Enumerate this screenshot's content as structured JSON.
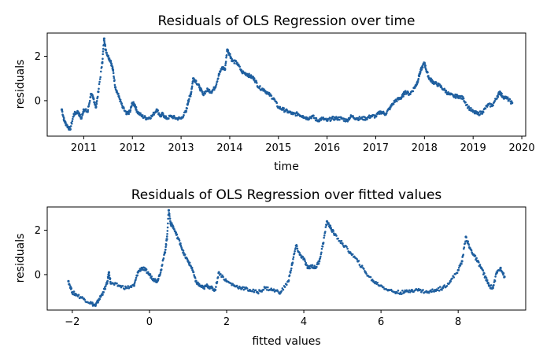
{
  "colors": {
    "points": "#1f5f9f",
    "axes": "#000000",
    "background": "#ffffff"
  },
  "chart_data": [
    {
      "type": "scatter",
      "title": "Residuals of OLS Regression over time",
      "xlabel": "time",
      "ylabel": "residuals",
      "xlim": [
        2010.25,
        2020.08
      ],
      "ylim": [
        -1.6,
        3.05
      ],
      "x_ticks": [
        2011,
        2012,
        2013,
        2014,
        2015,
        2016,
        2017,
        2018,
        2019,
        2020
      ],
      "y_ticks": [
        0,
        2
      ],
      "x_tick_labels": [
        "2011",
        "2012",
        "2013",
        "2014",
        "2015",
        "2016",
        "2017",
        "2018",
        "2019",
        "2020"
      ],
      "y_tick_labels": [
        "0",
        "2"
      ],
      "grid": false,
      "legend": "none",
      "series": [
        {
          "x": [
            2010.55,
            2010.6,
            2010.65,
            2010.72,
            2010.8,
            2010.88,
            2010.95,
            2011.0,
            2011.08,
            2011.15,
            2011.2,
            2011.25,
            2011.3,
            2011.38,
            2011.42,
            2011.45,
            2011.5,
            2011.55,
            2011.6,
            2011.65,
            2011.72,
            2011.8,
            2011.88,
            2011.95,
            2012.0,
            2012.05,
            2012.1,
            2012.2,
            2012.3,
            2012.4,
            2012.5,
            2012.58,
            2012.62,
            2012.7,
            2012.8,
            2012.9,
            2013.0,
            2013.1,
            2013.15,
            2013.2,
            2013.25,
            2013.3,
            2013.38,
            2013.45,
            2013.55,
            2013.62,
            2013.7,
            2013.78,
            2013.85,
            2013.9,
            2013.95,
            2014.0,
            2014.05,
            2014.15,
            2014.25,
            2014.35,
            2014.42,
            2014.5,
            2014.6,
            2014.7,
            2014.8,
            2014.9,
            2015.0,
            2015.1,
            2015.2,
            2015.3,
            2015.4,
            2015.5,
            2015.6,
            2015.7,
            2015.8,
            2015.9,
            2016.0,
            2016.1,
            2016.2,
            2016.3,
            2016.4,
            2016.5,
            2016.6,
            2016.7,
            2016.8,
            2016.9,
            2017.0,
            2017.1,
            2017.2,
            2017.3,
            2017.4,
            2017.5,
            2017.55,
            2017.6,
            2017.7,
            2017.8,
            2017.85,
            2017.9,
            2017.95,
            2018.0,
            2018.05,
            2018.1,
            2018.15,
            2018.2,
            2018.3,
            2018.4,
            2018.5,
            2018.6,
            2018.7,
            2018.8,
            2018.9,
            2019.0,
            2019.1,
            2019.2,
            2019.3,
            2019.4,
            2019.5,
            2019.55,
            2019.6,
            2019.7,
            2019.8
          ],
          "y": [
            -0.4,
            -0.9,
            -1.1,
            -1.3,
            -0.6,
            -0.5,
            -0.8,
            -0.4,
            -0.5,
            0.3,
            0.1,
            -0.3,
            0.4,
            1.7,
            2.8,
            2.3,
            2.0,
            1.8,
            1.4,
            0.6,
            0.2,
            -0.3,
            -0.6,
            -0.5,
            -0.1,
            -0.2,
            -0.5,
            -0.7,
            -0.8,
            -0.7,
            -0.4,
            -0.7,
            -0.6,
            -0.8,
            -0.7,
            -0.8,
            -0.8,
            -0.5,
            0.0,
            0.3,
            1.0,
            0.9,
            0.6,
            0.3,
            0.5,
            0.4,
            0.6,
            1.2,
            1.5,
            1.4,
            2.3,
            2.1,
            1.8,
            1.7,
            1.3,
            1.2,
            1.1,
            1.0,
            0.6,
            0.5,
            0.3,
            0.1,
            -0.3,
            -0.4,
            -0.5,
            -0.6,
            -0.6,
            -0.7,
            -0.8,
            -0.7,
            -0.9,
            -0.8,
            -0.9,
            -0.8,
            -0.8,
            -0.8,
            -0.9,
            -0.7,
            -0.8,
            -0.8,
            -0.8,
            -0.7,
            -0.7,
            -0.5,
            -0.6,
            -0.3,
            0.0,
            0.1,
            0.2,
            0.4,
            0.3,
            0.6,
            0.8,
            1.2,
            1.5,
            1.7,
            1.3,
            1.0,
            0.9,
            0.8,
            0.7,
            0.5,
            0.3,
            0.2,
            0.2,
            0.1,
            -0.3,
            -0.5,
            -0.6,
            -0.5,
            -0.2,
            -0.2,
            0.2,
            0.4,
            0.2,
            0.1,
            -0.1
          ]
        }
      ]
    },
    {
      "type": "scatter",
      "title": "Residuals of OLS Regression over fitted values",
      "xlabel": "fitted values",
      "ylabel": "residuals",
      "xlim": [
        -2.65,
        9.75
      ],
      "ylim": [
        -1.6,
        3.05
      ],
      "x_ticks": [
        -2,
        0,
        2,
        4,
        6,
        8
      ],
      "y_ticks": [
        0,
        2
      ],
      "x_tick_labels": [
        "−2",
        "0",
        "2",
        "4",
        "6",
        "8"
      ],
      "y_tick_labels": [
        "0",
        "2"
      ],
      "grid": false,
      "legend": "none",
      "series": [
        {
          "x": [
            -2.1,
            -2.0,
            -1.9,
            -1.7,
            -1.5,
            -1.4,
            -1.3,
            -1.2,
            -1.1,
            -1.05,
            -1.0,
            -0.8,
            -0.6,
            -0.4,
            -0.3,
            -0.2,
            -0.1,
            0.0,
            0.1,
            0.2,
            0.3,
            0.4,
            0.45,
            0.5,
            0.55,
            0.6,
            0.7,
            0.8,
            0.9,
            1.0,
            1.1,
            1.2,
            1.3,
            1.4,
            1.5,
            1.6,
            1.7,
            1.8,
            2.0,
            2.2,
            2.4,
            2.6,
            2.8,
            3.0,
            3.2,
            3.4,
            3.6,
            3.7,
            3.8,
            3.9,
            4.0,
            4.1,
            4.2,
            4.3,
            4.4,
            4.5,
            4.6,
            4.7,
            4.8,
            5.0,
            5.2,
            5.4,
            5.6,
            5.8,
            6.0,
            6.2,
            6.4,
            6.6,
            6.8,
            7.0,
            7.2,
            7.4,
            7.6,
            7.8,
            8.0,
            8.1,
            8.2,
            8.3,
            8.4,
            8.5,
            8.6,
            8.7,
            8.8,
            8.9,
            9.0,
            9.1,
            9.2
          ],
          "y": [
            -0.3,
            -0.8,
            -0.9,
            -1.1,
            -1.3,
            -1.4,
            -1.1,
            -0.8,
            -0.4,
            0.1,
            -0.4,
            -0.5,
            -0.6,
            -0.5,
            0.1,
            0.3,
            0.2,
            0.0,
            -0.2,
            -0.3,
            0.2,
            1.0,
            1.6,
            2.9,
            2.3,
            2.2,
            1.8,
            1.4,
            0.9,
            0.6,
            0.3,
            -0.3,
            -0.5,
            -0.6,
            -0.5,
            -0.6,
            -0.7,
            0.1,
            -0.3,
            -0.5,
            -0.6,
            -0.7,
            -0.8,
            -0.6,
            -0.7,
            -0.8,
            -0.3,
            0.5,
            1.3,
            0.9,
            0.7,
            0.3,
            0.4,
            0.3,
            0.6,
            1.4,
            2.4,
            2.1,
            1.8,
            1.4,
            1.0,
            0.6,
            0.1,
            -0.3,
            -0.5,
            -0.7,
            -0.8,
            -0.8,
            -0.7,
            -0.7,
            -0.8,
            -0.7,
            -0.6,
            -0.3,
            0.2,
            0.6,
            1.7,
            1.2,
            0.9,
            0.6,
            0.3,
            -0.1,
            -0.5,
            -0.6,
            0.1,
            0.3,
            -0.1
          ]
        }
      ]
    }
  ]
}
